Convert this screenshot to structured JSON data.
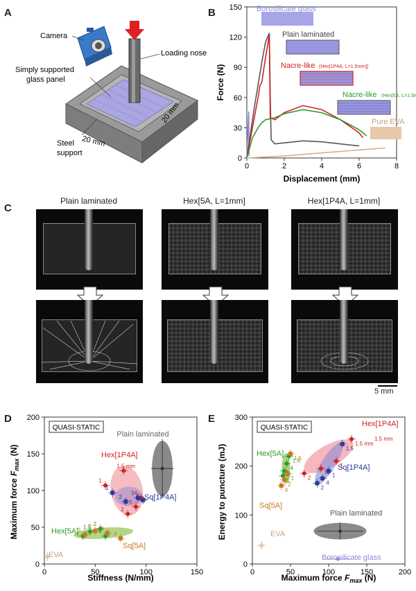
{
  "panels": {
    "A": {
      "letter": "A",
      "labels": {
        "camera": "Camera",
        "loading_nose": "Loading nose",
        "panel": "Simply supported glass panel",
        "dim1": "20 mm",
        "dim2": "20 mm",
        "support": "Steel support"
      }
    },
    "B": {
      "letter": "B",
      "chart_data": {
        "type": "line",
        "xlabel": "Displacement (mm)",
        "ylabel": "Force (N)",
        "xlim": [
          0,
          8
        ],
        "ylim": [
          0,
          150
        ],
        "xticks": [
          "0",
          "2",
          "4",
          "6",
          "8"
        ],
        "yticks": [
          "0",
          "30",
          "60",
          "90",
          "120",
          "150"
        ],
        "series": [
          {
            "name": "Borosilicate glass",
            "color": "#8a8ad6",
            "x": [
              0,
              0.04,
              0.08,
              0.1,
              0.12
            ],
            "y": [
              0,
              20,
              40,
              46,
              2
            ]
          },
          {
            "name": "Plain laminated",
            "color": "#555555",
            "x": [
              0,
              0.4,
              0.8,
              1.0,
              1.2,
              1.25,
              1.3,
              1.5,
              2,
              3,
              4,
              5,
              6
            ],
            "y": [
              0,
              50,
              95,
              115,
              124,
              60,
              18,
              14,
              15,
              17,
              16,
              14,
              12
            ]
          },
          {
            "name": "Nacre-like (Hex[1P4A, L=1.5mm])",
            "color": "#d42020",
            "x": [
              0,
              0.3,
              0.6,
              0.7,
              0.8,
              1.0,
              1.2,
              1.25,
              1.5,
              2,
              3,
              4,
              5,
              6,
              6.2
            ],
            "y": [
              0,
              30,
              60,
              72,
              75,
              100,
              122,
              40,
              38,
              45,
              52,
              48,
              38,
              25,
              20
            ]
          },
          {
            "name": "Nacre-like (Hex[5A, L=1.5mm])",
            "color": "#2a9a2a",
            "x": [
              0,
              0.3,
              0.6,
              0.8,
              1,
              1.5,
              2,
              3,
              4,
              5,
              6,
              6.4
            ],
            "y": [
              0,
              20,
              30,
              35,
              38,
              40,
              44,
              48,
              45,
              38,
              28,
              22
            ]
          },
          {
            "name": "Pure EVA",
            "color": "#d4b090",
            "x": [
              0,
              2,
              4,
              6,
              7.4
            ],
            "y": [
              0,
              2,
              5,
              8,
              10
            ]
          }
        ]
      },
      "legend": {
        "borosilicate": "Borosilicate glass",
        "plain": "Plain laminated",
        "nacre1_main": "Nacre-like",
        "nacre1_sub": "(Hex[1P4A, L=1.5mm])",
        "nacre2_main": "Nacre-like",
        "nacre2_sub": "(Hex[5A, L=1.5mm])",
        "eva": "Pure EVA"
      },
      "colors": {
        "borosilicate": "#8a8ad6",
        "plain": "#555555",
        "nacre1": "#d42020",
        "nacre2": "#2a9a2a",
        "eva": "#c8a080"
      }
    },
    "C": {
      "letter": "C",
      "titles": [
        "Plain laminated",
        "Hex[5A, L=1mm]",
        "Hex[1P4A, L=1mm]"
      ],
      "scalebar": "5 mm"
    },
    "D": {
      "letter": "D",
      "chart_data": {
        "type": "scatter",
        "xlabel": "Stiffness (N/mm)",
        "ylabel": "Maximum force F_max (N)",
        "xlim": [
          0,
          150
        ],
        "ylim": [
          0,
          200
        ],
        "xticks": [
          "0",
          "50",
          "100",
          "150"
        ],
        "yticks": [
          "0",
          "50",
          "100",
          "150",
          "200"
        ],
        "box_label": "QUASI-STATIC",
        "series": [
          {
            "name": "Hex[1P4A]",
            "color": "#d42020",
            "x": [
              60,
              78,
              82,
              90,
              95
            ],
            "y": [
              107,
              127,
              68,
              78,
              90
            ],
            "labels": [
              "1",
              "1.5 mm",
              "2",
              "3",
              "4"
            ]
          },
          {
            "name": "Sq[1P4A]",
            "color": "#2a3a9a",
            "x": [
              67,
              80,
              92,
              97
            ],
            "y": [
              97,
              85,
              90,
              87
            ],
            "labels": [
              "1",
              "2",
              "3",
              "4"
            ]
          },
          {
            "name": "Hex[5A]",
            "color": "#2a9a2a",
            "x": [
              38,
              45,
              55,
              60
            ],
            "y": [
              38,
              44,
              48,
              38
            ],
            "labels": [
              "1",
              "1.5",
              "2",
              "4"
            ]
          },
          {
            "name": "Sq[5A]",
            "color": "#c87a20",
            "x": [
              40,
              50,
              62,
              75
            ],
            "y": [
              40,
              45,
              42,
              35
            ],
            "labels": [
              "1",
              "2",
              "3",
              "4"
            ]
          },
          {
            "name": "EVA",
            "color": "#c8a080",
            "x": [
              3
            ],
            "y": [
              10
            ]
          },
          {
            "name": "Plain laminated",
            "color": "#666666",
            "x": [
              116
            ],
            "y": [
              130
            ]
          }
        ]
      },
      "labels": {
        "plain": "Plain laminated",
        "hex1p4a": "Hex[1P4A]",
        "sq1p4a": "Sq[1P4A]",
        "hex5a": "Hex[5A]",
        "sq5a": "Sq[5A]",
        "eva": "EVA",
        "mm": "1.5 mm"
      }
    },
    "E": {
      "letter": "E",
      "chart_data": {
        "type": "scatter",
        "xlabel": "Maximum force F_max (N)",
        "ylabel": "Energy to puncture (mJ)",
        "xlim": [
          0,
          200
        ],
        "ylim": [
          0,
          300
        ],
        "xticks": [
          "0",
          "50",
          "100",
          "150",
          "200"
        ],
        "yticks": [
          "0",
          "100",
          "200",
          "300"
        ],
        "box_label": "QUASI-STATIC",
        "series": [
          {
            "name": "Hex[1P4A]",
            "color": "#d42020",
            "x": [
              68,
              90,
              110,
              130
            ],
            "y": [
              185,
              195,
              210,
              255
            ],
            "labels": [
              "2",
              "4",
              "1",
              "1.5 mm"
            ]
          },
          {
            "name": "Sq[1P4A]",
            "color": "#2a3a9a",
            "x": [
              85,
              92,
              100,
              118
            ],
            "y": [
              165,
              175,
              190,
              245
            ],
            "labels": [
              "2",
              "4",
              "1",
              "1.5"
            ]
          },
          {
            "name": "Hex[5A]",
            "color": "#2a9a2a",
            "x": [
              40,
              42,
              45,
              48
            ],
            "y": [
              180,
              190,
              205,
              220
            ],
            "labels": [
              "1",
              "2",
              "4",
              "1.5"
            ]
          },
          {
            "name": "Sq[5A]",
            "color": "#c87a20",
            "x": [
              38,
              42,
              46,
              50
            ],
            "y": [
              160,
              172,
              185,
              225
            ],
            "labels": [
              "4",
              "2",
              "1",
              "1.5"
            ]
          },
          {
            "name": "EVA",
            "color": "#c8a080",
            "x": [
              12
            ],
            "y": [
              38
            ]
          },
          {
            "name": "Plain laminated",
            "color": "#666666",
            "x": [
              115
            ],
            "y": [
              67
            ]
          },
          {
            "name": "Borosilicate glass",
            "color": "#8a8ad6",
            "x": [
              112
            ],
            "y": [
              10
            ]
          }
        ]
      },
      "labels": {
        "hex1p4a": "Hex[1P4A]",
        "mm": "1.5 mm",
        "hex5a": "Hex[5A]",
        "sq1p4a": "Sq[1P4A]",
        "sq5a": "Sq[5A]",
        "eva": "EVA",
        "plain": "Plain laminated",
        "boro": "Borosilicate glass"
      }
    }
  }
}
